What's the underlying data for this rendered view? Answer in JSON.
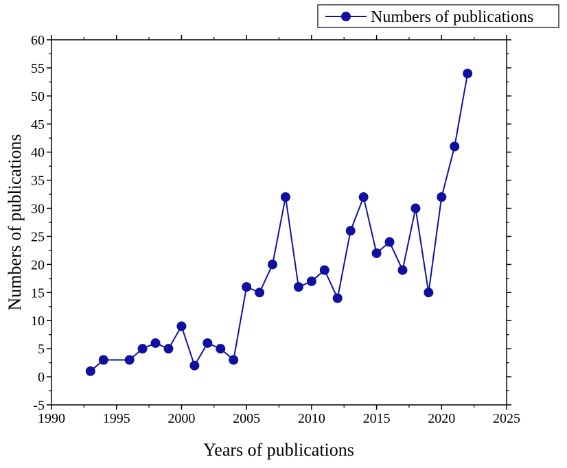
{
  "chart_data": {
    "type": "line",
    "title": "",
    "xlabel": "Years of publications",
    "ylabel": "Numbers of publications",
    "xlim": [
      1990,
      2025
    ],
    "ylim": [
      -5,
      60
    ],
    "xticks": [
      "1990",
      "1995",
      "2000",
      "2005",
      "2010",
      "2015",
      "2020",
      "2025"
    ],
    "yticks": [
      "-5",
      "0",
      "5",
      "10",
      "15",
      "20",
      "25",
      "30",
      "35",
      "40",
      "45",
      "50",
      "55",
      "60"
    ],
    "grid": false,
    "legend": {
      "placement": "top-right",
      "entries": [
        "Numbers of publications"
      ]
    },
    "series": [
      {
        "name": "Numbers of publications",
        "color": "#1010a0",
        "marker": "circle",
        "x": [
          1993,
          1994,
          1996,
          1997,
          1998,
          1999,
          2000,
          2001,
          2002,
          2003,
          2004,
          2005,
          2006,
          2007,
          2008,
          2009,
          2010,
          2011,
          2012,
          2013,
          2014,
          2015,
          2016,
          2017,
          2018,
          2019,
          2020,
          2021,
          2022
        ],
        "y": [
          1,
          3,
          3,
          5,
          6,
          5,
          9,
          2,
          6,
          5,
          3,
          16,
          15,
          20,
          32,
          16,
          17,
          19,
          14,
          26,
          32,
          22,
          24,
          19,
          30,
          15,
          32,
          41,
          54
        ]
      }
    ]
  }
}
